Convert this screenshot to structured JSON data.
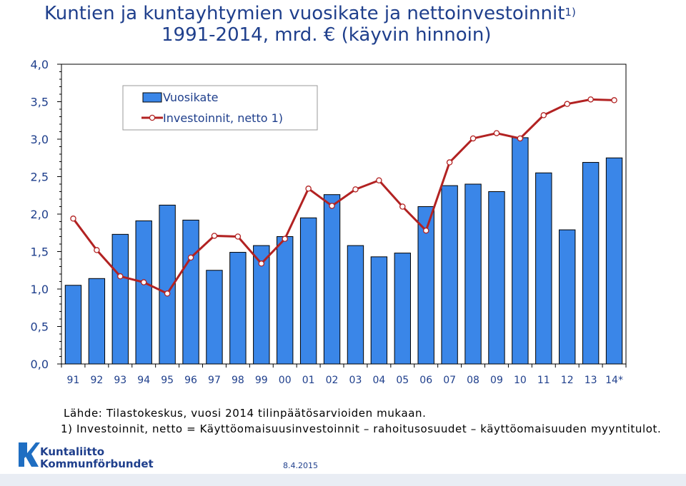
{
  "title": {
    "line1": "Kuntien ja kuntayhtymien vuosikate ja nettoinvestoinnit",
    "sup": "1)",
    "line2": "1991-2014, mrd. € (käyvin hinnoin)"
  },
  "chart_data": {
    "type": "bar",
    "categories": [
      "91",
      "92",
      "93",
      "94",
      "95",
      "96",
      "97",
      "98",
      "99",
      "00",
      "01",
      "02",
      "03",
      "04",
      "05",
      "06",
      "07",
      "08",
      "09",
      "10",
      "11",
      "12",
      "13",
      "14*"
    ],
    "series": [
      {
        "name": "Vuosikate",
        "type": "bar",
        "color": "#3a86e8",
        "values": [
          1.05,
          1.14,
          1.73,
          1.91,
          2.12,
          1.92,
          1.25,
          1.49,
          1.58,
          1.7,
          1.95,
          2.26,
          1.58,
          1.43,
          1.48,
          2.1,
          2.38,
          2.4,
          2.3,
          3.02,
          2.55,
          1.79,
          2.69,
          2.75
        ]
      },
      {
        "name": "Investoinnit, netto 1)",
        "type": "line",
        "color": "#b22222",
        "values": [
          1.94,
          1.52,
          1.17,
          1.09,
          0.94,
          1.42,
          1.71,
          1.7,
          1.34,
          1.67,
          2.34,
          2.11,
          2.33,
          2.45,
          2.1,
          1.78,
          2.69,
          3.01,
          3.08,
          3.01,
          3.32,
          3.47,
          3.53,
          3.52
        ]
      }
    ],
    "ylim": [
      0,
      4.0
    ],
    "yticks": [
      "0,0",
      "0,5",
      "1,0",
      "1,5",
      "2,0",
      "2,5",
      "3,0",
      "3,5",
      "4,0"
    ],
    "legend": "top-left",
    "grid": false
  },
  "notes": {
    "source": "Lähde: Tilastokeskus, vuosi 2014 tilinpäätösarvioiden mukaan.",
    "footnote": "1) Investoinnit, netto  = Käyttöomaisuusinvestoinnit – rahoitusosuudet – käyttöomaisuuden myyntitulot."
  },
  "footer": {
    "logo_line1": "Kuntaliitto",
    "logo_line2": "Kommunförbundet",
    "date": "8.4.2015"
  }
}
